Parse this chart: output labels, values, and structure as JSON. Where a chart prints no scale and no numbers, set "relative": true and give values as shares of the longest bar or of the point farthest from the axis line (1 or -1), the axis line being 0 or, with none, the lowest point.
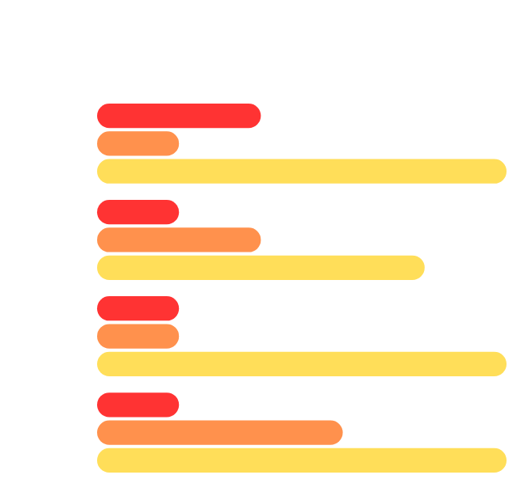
{
  "chart_data": {
    "type": "bar",
    "orientation": "horizontal",
    "relative": true,
    "categories": [
      null,
      null,
      null,
      null
    ],
    "series": [
      {
        "color": "#ff3333",
        "values": [
          0.4,
          0.2,
          0.2,
          0.2
        ]
      },
      {
        "color": "#ff914d",
        "values": [
          0.2,
          0.4,
          0.2,
          0.6
        ]
      },
      {
        "color": "#ffde59",
        "values": [
          1,
          0.8,
          1,
          1
        ]
      }
    ]
  }
}
